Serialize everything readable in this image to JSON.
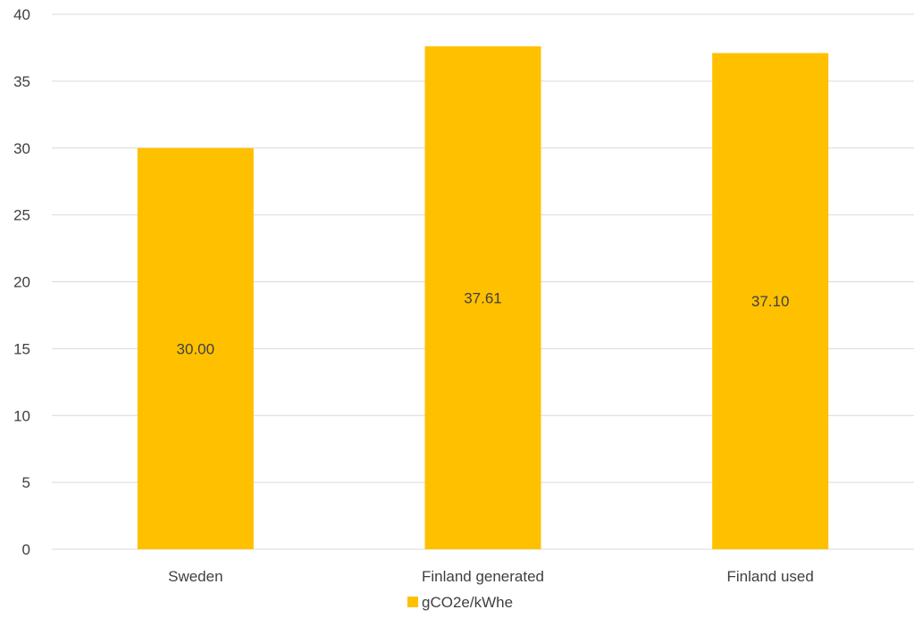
{
  "chart_data": {
    "type": "bar",
    "title": "",
    "xlabel": "",
    "ylabel": "",
    "categories": [
      "Sweden",
      "Finland generated",
      "Finland used"
    ],
    "series": [
      {
        "name": "gCO2e/kWhe",
        "values": [
          30.0,
          37.61,
          37.1
        ],
        "data_labels": [
          "30.00",
          "37.61",
          "37.10"
        ],
        "color": "#ffc000"
      }
    ],
    "ylim": [
      0,
      40
    ],
    "yticks": [
      0,
      5,
      10,
      15,
      20,
      25,
      30,
      35,
      40
    ],
    "grid": true,
    "legend_position": "bottom"
  }
}
